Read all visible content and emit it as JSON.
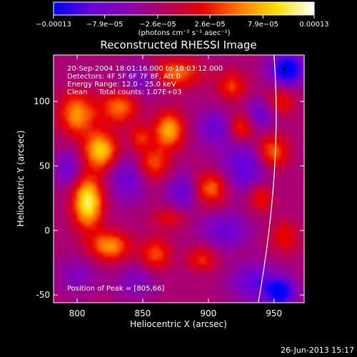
{
  "chart_data": {
    "type": "heatmap",
    "title": "Reconstructed RHESSI Image",
    "xlabel": "Heliocentric X (arcsec)",
    "ylabel": "Heliocentric Y (arcsec)",
    "xlim": [
      782,
      973
    ],
    "ylim": [
      -56,
      136
    ],
    "xticks": [
      {
        "value": 800,
        "label": "800"
      },
      {
        "value": 850,
        "label": "850"
      },
      {
        "value": 900,
        "label": "900"
      },
      {
        "value": 950,
        "label": "950"
      }
    ],
    "yticks": [
      {
        "value": 100,
        "label": "100"
      },
      {
        "value": 50,
        "label": "50"
      },
      {
        "value": 0,
        "label": "0"
      },
      {
        "value": -50,
        "label": "-50"
      }
    ],
    "colorbar": {
      "unit_label": "(photons cm⁻² s⁻¹ asec⁻²)",
      "range": [
        -0.00013,
        0.00013
      ],
      "ticks": [
        {
          "value": -0.00013,
          "label": "−0.00013"
        },
        {
          "value": -7.9e-05,
          "label": "−7.9e−05"
        },
        {
          "value": -2.6e-05,
          "label": "−2.6e−05"
        },
        {
          "value": 2.6e-05,
          "label": "2.6e−05"
        },
        {
          "value": 7.9e-05,
          "label": "7.9e−05"
        },
        {
          "value": 0.00013,
          "label": "0.00013"
        }
      ],
      "colors": [
        "#0000ff",
        "#6a00dc",
        "#8a00b0",
        "#b40060",
        "#e80000",
        "#ff7a00",
        "#ffe000",
        "#ffffff"
      ]
    },
    "annotations": [
      "20-Sep-2004 18:01:16.000 to 18:03:12.000",
      "Detectors: 4F 5F 6F 7F 8F, Att 0",
      "Energy Range: 12.0 - 25.0 keV",
      "Clean     Total counts: 1.07E+03"
    ],
    "peak_label": "Position of Peak = [805,66]",
    "peak": {
      "x": 805,
      "y": 66
    },
    "blobs": [
      {
        "x": 808,
        "y": 22,
        "sx": 8,
        "sy": 14,
        "amp": 1.2
      },
      {
        "x": 818,
        "y": 62,
        "sx": 9,
        "sy": 10,
        "amp": 1.0
      },
      {
        "x": 800,
        "y": 90,
        "sx": 10,
        "sy": 12,
        "amp": 0.8
      },
      {
        "x": 832,
        "y": 95,
        "sx": 10,
        "sy": 9,
        "amp": 0.7
      },
      {
        "x": 875,
        "y": 122,
        "sx": 14,
        "sy": 8,
        "amp": 0.7
      },
      {
        "x": 870,
        "y": 78,
        "sx": 8,
        "sy": 10,
        "amp": 0.9
      },
      {
        "x": 858,
        "y": 52,
        "sx": 9,
        "sy": 9,
        "amp": 0.6
      },
      {
        "x": 848,
        "y": 72,
        "sx": 6,
        "sy": 7,
        "amp": 0.5
      },
      {
        "x": 902,
        "y": 33,
        "sx": 9,
        "sy": 9,
        "amp": 0.7
      },
      {
        "x": 925,
        "y": 80,
        "sx": 7,
        "sy": 8,
        "amp": 0.6
      },
      {
        "x": 948,
        "y": 60,
        "sx": 9,
        "sy": 10,
        "amp": 0.8
      },
      {
        "x": 940,
        "y": 26,
        "sx": 7,
        "sy": 8,
        "amp": 0.55
      },
      {
        "x": 825,
        "y": -12,
        "sx": 11,
        "sy": 8,
        "amp": 0.8
      },
      {
        "x": 860,
        "y": -18,
        "sx": 8,
        "sy": 9,
        "amp": 0.6
      },
      {
        "x": 895,
        "y": -22,
        "sx": 8,
        "sy": 7,
        "amp": 0.5
      },
      {
        "x": 870,
        "y": 10,
        "sx": 9,
        "sy": 6,
        "amp": 0.4
      },
      {
        "x": 918,
        "y": 112,
        "sx": 8,
        "sy": 8,
        "amp": 0.55
      },
      {
        "x": 955,
        "y": 100,
        "sx": 8,
        "sy": 8,
        "amp": 0.5
      },
      {
        "x": 958,
        "y": -5,
        "sx": 8,
        "sy": 9,
        "amp": 0.45
      },
      {
        "x": 930,
        "y": 50,
        "sx": 14,
        "sy": 14,
        "amp": -0.6
      },
      {
        "x": 905,
        "y": 80,
        "sx": 9,
        "sy": 9,
        "amp": -0.5
      },
      {
        "x": 838,
        "y": 40,
        "sx": 9,
        "sy": 12,
        "amp": -0.5
      },
      {
        "x": 793,
        "y": 48,
        "sx": 7,
        "sy": 10,
        "amp": -0.45
      },
      {
        "x": 880,
        "y": 30,
        "sx": 8,
        "sy": 10,
        "amp": -0.5
      },
      {
        "x": 850,
        "y": 118,
        "sx": 10,
        "sy": 8,
        "amp": -0.45
      },
      {
        "x": 913,
        "y": 0,
        "sx": 12,
        "sy": 9,
        "amp": -0.5
      },
      {
        "x": 935,
        "y": -40,
        "sx": 12,
        "sy": 10,
        "amp": -0.55
      },
      {
        "x": 955,
        "y": -48,
        "sx": 8,
        "sy": 8,
        "amp": -0.9
      },
      {
        "x": 960,
        "y": 125,
        "sx": 9,
        "sy": 9,
        "amp": -1.0
      },
      {
        "x": 940,
        "y": 90,
        "sx": 8,
        "sy": 8,
        "amp": -0.5
      },
      {
        "x": 800,
        "y": -35,
        "sx": 10,
        "sy": 9,
        "amp": -0.3
      },
      {
        "x": 845,
        "y": -40,
        "sx": 10,
        "sy": 8,
        "amp": -0.35
      }
    ],
    "limb": {
      "x_top": 950,
      "x_bottom": 938
    }
  },
  "footer": {
    "date": "26-Jun-2013 15:17"
  }
}
